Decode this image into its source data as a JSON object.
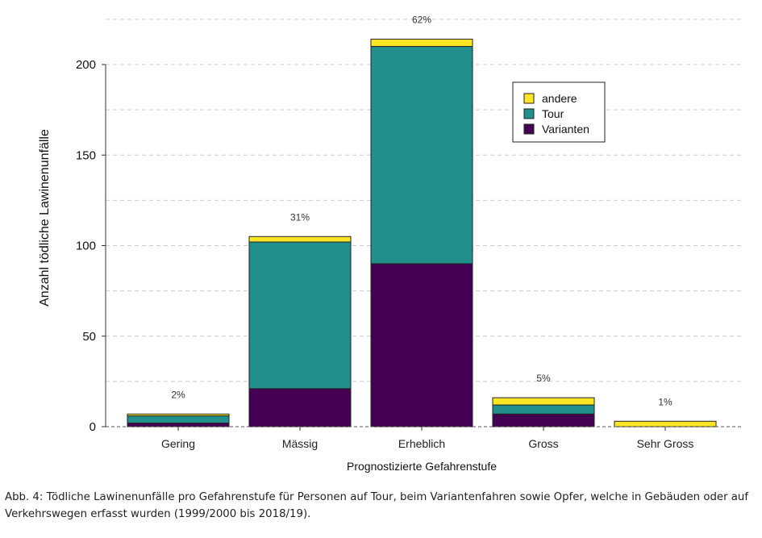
{
  "chart_data": {
    "type": "bar",
    "stacked": true,
    "categories": [
      "Gering",
      "Mässig",
      "Erheblich",
      "Gross",
      "Sehr Gross"
    ],
    "series": [
      {
        "name": "Varianten",
        "color": "#440154",
        "values": [
          2,
          21,
          90,
          7,
          0
        ]
      },
      {
        "name": "Tour",
        "color": "#21908C",
        "values": [
          4,
          81,
          120,
          5,
          0
        ]
      },
      {
        "name": "andere",
        "color": "#FDE725",
        "values": [
          1,
          3,
          4,
          4,
          3
        ]
      }
    ],
    "bar_labels": [
      "2%",
      "31%",
      "62%",
      "5%",
      "1%"
    ],
    "xlabel": "Prognostizierte Gefahrenstufe",
    "ylabel": "Anzahl tödliche Lawinenunfälle",
    "ylim": [
      0,
      225
    ],
    "yticks": [
      0,
      50,
      100,
      150,
      200
    ],
    "grid": true,
    "legend_position": "top-right",
    "legend_order": [
      "andere",
      "Tour",
      "Varianten"
    ]
  },
  "caption": "Abb. 4: Tödliche Lawinenunfälle pro Gefahrenstufe für Personen auf Tour, beim Variantenfahren sowie Opfer, welche in Gebäuden oder auf Verkehrswegen erfasst wurden (1999/2000 bis 2018/19)."
}
